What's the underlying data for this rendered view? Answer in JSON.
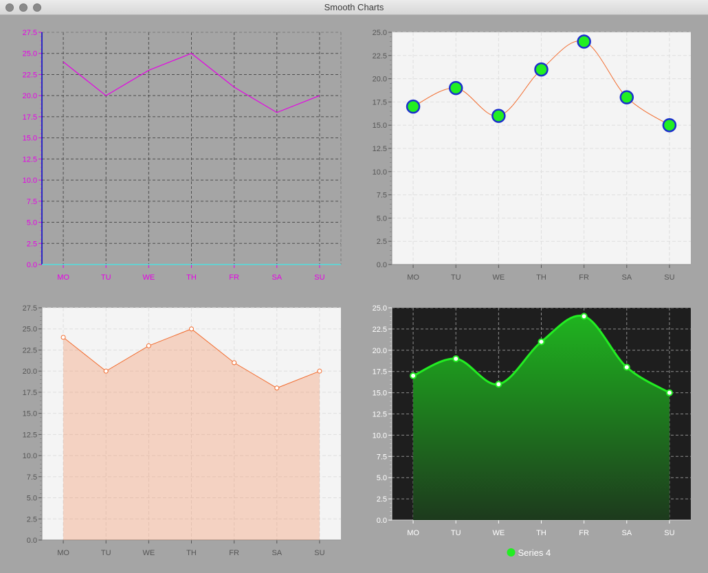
{
  "window": {
    "title": "Smooth Charts"
  },
  "categories": [
    "MO",
    "TU",
    "WE",
    "TH",
    "FR",
    "SA",
    "SU"
  ],
  "y_ticks": [
    "0.0",
    "2.5",
    "5.0",
    "7.5",
    "10.0",
    "12.5",
    "15.0",
    "17.5",
    "20.0",
    "22.5",
    "25.0",
    "27.5"
  ],
  "colors": {
    "magenta": "#e600e6",
    "orange": "#f26b2d",
    "green": "#22ee22",
    "blue": "#1a2ecc",
    "cyan": "#55dddd"
  },
  "chart_data": [
    {
      "type": "line",
      "categories": [
        "MO",
        "TU",
        "WE",
        "TH",
        "FR",
        "SA",
        "SU"
      ],
      "series": [
        {
          "values": [
            24,
            20,
            23,
            25,
            21,
            18,
            20
          ]
        }
      ],
      "ylim": [
        0,
        27.5
      ],
      "grid": true,
      "style": "dashed-dark-grid-magenta-line"
    },
    {
      "type": "line",
      "categories": [
        "MO",
        "TU",
        "WE",
        "TH",
        "FR",
        "SA",
        "SU"
      ],
      "series": [
        {
          "values": [
            17,
            19,
            16,
            21,
            24,
            18,
            15
          ]
        }
      ],
      "ylim": [
        0,
        25
      ],
      "grid": true,
      "style": "smooth-line-large-green-markers"
    },
    {
      "type": "area",
      "categories": [
        "MO",
        "TU",
        "WE",
        "TH",
        "FR",
        "SA",
        "SU"
      ],
      "series": [
        {
          "values": [
            24,
            20,
            23,
            25,
            21,
            18,
            20
          ]
        }
      ],
      "ylim": [
        0,
        27.5
      ],
      "grid": true,
      "style": "orange-area-small-markers"
    },
    {
      "type": "area",
      "categories": [
        "MO",
        "TU",
        "WE",
        "TH",
        "FR",
        "SA",
        "SU"
      ],
      "series": [
        {
          "name": "Series 4",
          "values": [
            17,
            19,
            16,
            21,
            24,
            18,
            15
          ]
        }
      ],
      "ylim": [
        0,
        25
      ],
      "grid": true,
      "legend": "bottom-center",
      "style": "smooth-green-gradient-dark-background"
    }
  ]
}
